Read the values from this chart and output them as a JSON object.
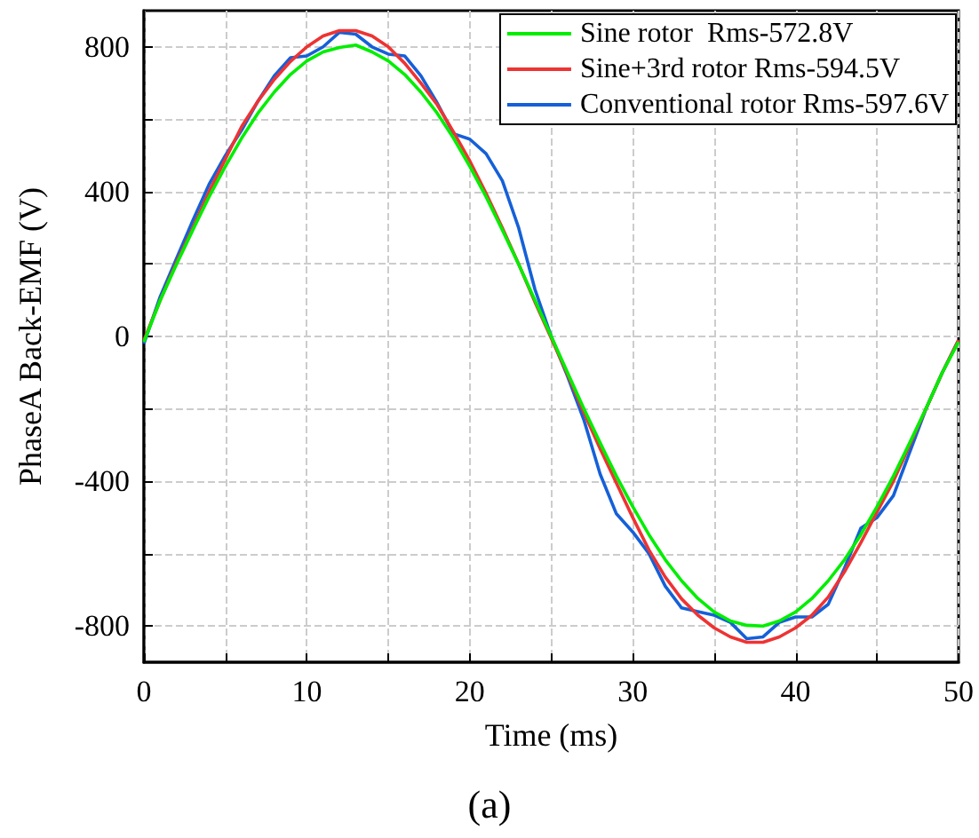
{
  "chart_data": {
    "type": "line",
    "xlabel": "Time (ms)",
    "ylabel": "PhaseA Back-EMF (V)",
    "annotations": [
      "(a)"
    ],
    "x": [
      0,
      1,
      2,
      3,
      4,
      5,
      6,
      7,
      8,
      9,
      10,
      11,
      12,
      13,
      14,
      15,
      16,
      17,
      18,
      19,
      20,
      21,
      22,
      23,
      24,
      25,
      26,
      27,
      28,
      29,
      30,
      31,
      32,
      33,
      34,
      35,
      36,
      37,
      38,
      39,
      40,
      41,
      42,
      43,
      44,
      45,
      46,
      47,
      48,
      49,
      50
    ],
    "xlim": [
      0,
      50
    ],
    "xticks": [
      0,
      {
        "value": 5,
        "label": null
      },
      10,
      {
        "value": 15,
        "label": null
      },
      20,
      {
        "value": 25,
        "label": null
      },
      30,
      {
        "value": 35,
        "label": null
      },
      40,
      {
        "value": 45,
        "label": null
      },
      50
    ],
    "ylim": [
      -900,
      900
    ],
    "yticks": [
      -800,
      {
        "value": -600,
        "label": null
      },
      -400,
      {
        "value": -200,
        "label": null
      },
      0,
      {
        "value": 200,
        "label": null
      },
      400,
      {
        "value": 600,
        "label": null
      },
      800
    ],
    "grid": true,
    "legend": "top right",
    "line_style": "solid",
    "marker": "none",
    "series": [
      {
        "name": "Sine rotor  Rms-572.8V",
        "color": "#00ee00",
        "values": [
          -15,
          100,
          199,
          294,
          386,
          470,
          548,
          617,
          675,
          724,
          761,
          786,
          798,
          805,
          786,
          761,
          724,
          675,
          617,
          548,
          470,
          386,
          294,
          199,
          100,
          0,
          -100,
          -199,
          -294,
          -386,
          -470,
          -548,
          -617,
          -675,
          -724,
          -761,
          -786,
          -798,
          -800,
          -786,
          -761,
          -724,
          -675,
          -617,
          -548,
          -470,
          -386,
          -294,
          -199,
          -100,
          -15
        ]
      },
      {
        "name": "Sine+3rd rotor Rms-594.5V",
        "color": "#ee3333",
        "values": [
          -10,
          100,
          205,
          300,
          400,
          490,
          580,
          650,
          710,
          760,
          800,
          830,
          845,
          845,
          830,
          800,
          755,
          700,
          640,
          565,
          485,
          395,
          300,
          200,
          95,
          -5,
          -105,
          -210,
          -310,
          -405,
          -500,
          -590,
          -665,
          -725,
          -770,
          -805,
          -830,
          -845,
          -845,
          -830,
          -805,
          -770,
          -720,
          -650,
          -570,
          -485,
          -400,
          -300,
          -200,
          -100,
          -10
        ]
      },
      {
        "name": "Conventional rotor Rms-597.6V",
        "color": "#1560d8",
        "values": [
          -20,
          110,
          215,
          320,
          420,
          500,
          570,
          650,
          720,
          770,
          775,
          800,
          840,
          835,
          800,
          780,
          775,
          720,
          645,
          560,
          545,
          505,
          430,
          300,
          130,
          0,
          -110,
          -230,
          -380,
          -490,
          -540,
          -600,
          -690,
          -750,
          -760,
          -770,
          -790,
          -835,
          -830,
          -790,
          -775,
          -775,
          -740,
          -640,
          -530,
          -500,
          -440,
          -320,
          -200,
          -100,
          -10
        ]
      }
    ]
  }
}
